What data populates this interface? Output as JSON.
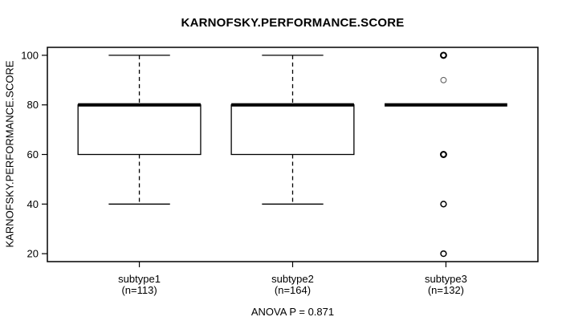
{
  "chart_data": {
    "type": "boxplot",
    "title": "KARNOFSKY.PERFORMANCE.SCORE",
    "ylabel": "KARNOFSKY.PERFORMANCE.SCORE",
    "annotation": "ANOVA P = 0.871",
    "yticks": [
      20,
      40,
      60,
      80,
      100
    ],
    "ylim": [
      16.8,
      103.2
    ],
    "grid": false,
    "legend": "none",
    "groups": [
      {
        "label": "subtype1",
        "sublabel": "(n=113)",
        "n": 113,
        "stats": {
          "whisker_low": 40,
          "q1": 60,
          "median": 80,
          "q3": 80,
          "whisker_high": 100
        },
        "outliers": []
      },
      {
        "label": "subtype2",
        "sublabel": "(n=164)",
        "n": 164,
        "stats": {
          "whisker_low": 40,
          "q1": 60,
          "median": 80,
          "q3": 80,
          "whisker_high": 100
        },
        "outliers": []
      },
      {
        "label": "subtype3",
        "sublabel": "(n=132)",
        "n": 132,
        "stats": {
          "whisker_low": 80,
          "q1": 80,
          "median": 80,
          "q3": 80,
          "whisker_high": 80
        },
        "outliers": [
          {
            "value": 100,
            "weight": "bold"
          },
          {
            "value": 90,
            "weight": "light"
          },
          {
            "value": 60,
            "weight": "bold"
          },
          {
            "value": 40,
            "weight": "normal"
          },
          {
            "value": 20,
            "weight": "normal"
          }
        ]
      }
    ],
    "colors": {
      "stroke": "#000000",
      "box_fill": "#ffffff",
      "background": "#ffffff",
      "light_point": "#666666"
    }
  }
}
